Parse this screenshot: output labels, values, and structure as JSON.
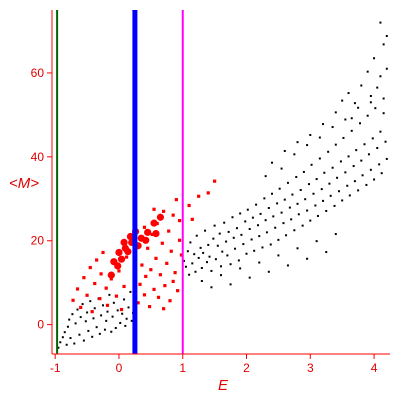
{
  "chart_data": {
    "type": "scatter",
    "title": "",
    "xlabel": "E",
    "ylabel": "<M>",
    "xlim": [
      -1.05,
      4.25
    ],
    "ylim": [
      -7,
      75
    ],
    "x_ticks": [
      -1,
      0,
      1,
      2,
      3,
      4
    ],
    "y_ticks": [
      0,
      20,
      40,
      60
    ],
    "x_tick_labels": [
      "-1",
      "0",
      "1",
      "2",
      "3",
      "4"
    ],
    "y_tick_labels": [
      "0",
      "20",
      "40",
      "60"
    ],
    "grid": false,
    "legend": "none",
    "axis_color": "#ff0000",
    "vertical_lines": [
      {
        "x": -0.97,
        "color": "#006400"
      },
      {
        "x": 0.25,
        "color": "#0000ff"
      },
      {
        "x": 1.0,
        "color": "#ff00ff"
      }
    ],
    "series": [
      {
        "marker": "dot",
        "color": "#000000",
        "points": [
          [
            -0.95,
            -5.5
          ],
          [
            -0.92,
            -4.2
          ],
          [
            -0.88,
            -3.0
          ],
          [
            -0.85,
            -1.8
          ],
          [
            -0.82,
            -4.8
          ],
          [
            -0.8,
            -0.5
          ],
          [
            -0.78,
            1.2
          ],
          [
            -0.76,
            -3.2
          ],
          [
            -0.73,
            2.5
          ],
          [
            -0.7,
            -4.5
          ],
          [
            -0.68,
            0.3
          ],
          [
            -0.65,
            3.6
          ],
          [
            -0.62,
            -2.4
          ],
          [
            -0.6,
            1.8
          ],
          [
            -0.57,
            4.9
          ],
          [
            -0.55,
            -3.8
          ],
          [
            -0.52,
            0.8
          ],
          [
            -0.5,
            2.9
          ],
          [
            -0.48,
            -1.5
          ],
          [
            -0.45,
            5.6
          ],
          [
            -0.42,
            -2.9
          ],
          [
            -0.4,
            1.5
          ],
          [
            -0.38,
            3.9
          ],
          [
            -0.35,
            -0.6
          ],
          [
            -0.32,
            6.2
          ],
          [
            -0.3,
            -2.2
          ],
          [
            -0.28,
            2.2
          ],
          [
            -0.25,
            4.6
          ],
          [
            -0.22,
            -1.2
          ],
          [
            -0.2,
            0.9
          ],
          [
            -0.18,
            3.1
          ],
          [
            -0.15,
            7.1
          ],
          [
            -0.12,
            -1.7
          ],
          [
            -0.1,
            1.9
          ],
          [
            -0.08,
            5.2
          ],
          [
            -0.05,
            -0.8
          ],
          [
            -0.02,
            3.4
          ],
          [
            0.02,
            0.4
          ],
          [
            0.05,
            2.6
          ],
          [
            0.08,
            6.0
          ],
          [
            0.1,
            -0.3
          ],
          [
            0.12,
            1.4
          ],
          [
            0.15,
            4.1
          ],
          [
            0.18,
            7.8
          ],
          [
            0.2,
            0.9
          ],
          [
            0.22,
            2.8
          ],
          [
            1.02,
            15.2
          ],
          [
            1.05,
            13.8
          ],
          [
            1.08,
            17.5
          ],
          [
            1.1,
            11.9
          ],
          [
            1.12,
            19.6
          ],
          [
            1.15,
            14.6
          ],
          [
            1.18,
            16.8
          ],
          [
            1.2,
            12.6
          ],
          [
            1.22,
            21.2
          ],
          [
            1.25,
            15.9
          ],
          [
            1.28,
            18.3
          ],
          [
            1.3,
            13.5
          ],
          [
            1.32,
            17.1
          ],
          [
            1.35,
            22.4
          ],
          [
            1.38,
            14.9
          ],
          [
            1.4,
            19.0
          ],
          [
            1.42,
            16.2
          ],
          [
            1.45,
            12.8
          ],
          [
            1.48,
            20.5
          ],
          [
            1.5,
            23.6
          ],
          [
            1.52,
            15.6
          ],
          [
            1.55,
            18.8
          ],
          [
            1.58,
            21.7
          ],
          [
            1.6,
            13.9
          ],
          [
            1.62,
            17.4
          ],
          [
            1.65,
            24.3
          ],
          [
            1.68,
            19.8
          ],
          [
            1.7,
            16.5
          ],
          [
            1.72,
            22.1
          ],
          [
            1.75,
            14.4
          ],
          [
            1.78,
            25.6
          ],
          [
            1.8,
            20.7
          ],
          [
            1.82,
            18.1
          ],
          [
            1.85,
            23.0
          ],
          [
            1.88,
            15.3
          ],
          [
            1.9,
            26.5
          ],
          [
            1.92,
            21.4
          ],
          [
            1.95,
            19.2
          ],
          [
            1.98,
            24.6
          ],
          [
            2.0,
            16.9
          ],
          [
            2.02,
            27.4
          ],
          [
            2.05,
            22.8
          ],
          [
            2.08,
            20.3
          ],
          [
            2.1,
            25.5
          ],
          [
            2.12,
            17.6
          ],
          [
            2.15,
            28.6
          ],
          [
            2.18,
            23.7
          ],
          [
            2.2,
            21.1
          ],
          [
            2.22,
            26.4
          ],
          [
            2.25,
            18.4
          ],
          [
            2.28,
            30.1
          ],
          [
            2.3,
            24.9
          ],
          [
            2.32,
            22.0
          ],
          [
            2.35,
            27.8
          ],
          [
            2.38,
            19.1
          ],
          [
            2.4,
            31.2
          ],
          [
            2.42,
            25.8
          ],
          [
            2.45,
            23.1
          ],
          [
            2.48,
            28.9
          ],
          [
            2.5,
            20.2
          ],
          [
            2.52,
            32.4
          ],
          [
            2.55,
            26.7
          ],
          [
            2.58,
            24.2
          ],
          [
            2.6,
            29.8
          ],
          [
            2.62,
            21.3
          ],
          [
            2.65,
            33.8
          ],
          [
            2.68,
            27.9
          ],
          [
            2.7,
            25.1
          ],
          [
            2.72,
            31.0
          ],
          [
            2.75,
            22.5
          ],
          [
            2.78,
            35.2
          ],
          [
            2.8,
            28.8
          ],
          [
            2.82,
            26.3
          ],
          [
            2.85,
            32.1
          ],
          [
            2.88,
            23.6
          ],
          [
            2.9,
            36.4
          ],
          [
            2.92,
            29.9
          ],
          [
            2.95,
            27.2
          ],
          [
            2.98,
            33.5
          ],
          [
            3.0,
            24.8
          ],
          [
            3.02,
            38.1
          ],
          [
            3.05,
            31.2
          ],
          [
            3.08,
            28.4
          ],
          [
            3.1,
            34.7
          ],
          [
            3.12,
            25.9
          ],
          [
            3.15,
            39.6
          ],
          [
            3.18,
            32.3
          ],
          [
            3.2,
            29.5
          ],
          [
            3.22,
            36.2
          ],
          [
            3.25,
            27.1
          ],
          [
            3.28,
            41.2
          ],
          [
            3.3,
            33.6
          ],
          [
            3.32,
            30.7
          ],
          [
            3.35,
            37.4
          ],
          [
            3.38,
            28.3
          ],
          [
            3.4,
            42.9
          ],
          [
            3.42,
            35.0
          ],
          [
            3.45,
            31.8
          ],
          [
            3.48,
            38.9
          ],
          [
            3.5,
            29.6
          ],
          [
            3.52,
            44.5
          ],
          [
            3.55,
            36.3
          ],
          [
            3.58,
            33.1
          ],
          [
            3.6,
            40.1
          ],
          [
            3.62,
            30.8
          ],
          [
            3.65,
            46.2
          ],
          [
            3.68,
            37.8
          ],
          [
            3.7,
            34.2
          ],
          [
            3.72,
            41.6
          ],
          [
            3.75,
            32.0
          ],
          [
            3.78,
            48.0
          ],
          [
            3.8,
            39.1
          ],
          [
            3.82,
            35.6
          ],
          [
            3.85,
            43.0
          ],
          [
            3.88,
            33.3
          ],
          [
            3.9,
            49.8
          ],
          [
            3.92,
            40.6
          ],
          [
            3.95,
            36.9
          ],
          [
            3.98,
            44.4
          ],
          [
            4.0,
            34.6
          ],
          [
            4.02,
            51.6
          ],
          [
            4.05,
            42.1
          ],
          [
            4.08,
            38.2
          ],
          [
            4.1,
            46.0
          ],
          [
            4.12,
            36.1
          ],
          [
            4.15,
            53.9
          ],
          [
            4.18,
            43.6
          ],
          [
            4.2,
            39.5
          ],
          [
            1.3,
            10.4
          ],
          [
            1.45,
            8.9
          ],
          [
            1.6,
            11.8
          ],
          [
            1.75,
            9.6
          ],
          [
            1.9,
            13.4
          ],
          [
            2.05,
            11.2
          ],
          [
            2.2,
            14.8
          ],
          [
            2.35,
            12.6
          ],
          [
            2.5,
            16.5
          ],
          [
            2.65,
            14.1
          ],
          [
            2.8,
            18.2
          ],
          [
            2.95,
            15.7
          ],
          [
            3.1,
            19.9
          ],
          [
            3.25,
            17.3
          ],
          [
            3.4,
            21.6
          ],
          [
            2.4,
            38.6
          ],
          [
            2.6,
            41.4
          ],
          [
            2.8,
            43.5
          ],
          [
            3.0,
            45.2
          ],
          [
            3.2,
            47.8
          ],
          [
            3.4,
            50.6
          ],
          [
            3.5,
            53.4
          ],
          [
            3.6,
            55.2
          ],
          [
            3.7,
            52.8
          ],
          [
            3.8,
            57.0
          ],
          [
            3.9,
            60.3
          ],
          [
            4.0,
            63.5
          ],
          [
            4.05,
            56.5
          ],
          [
            4.1,
            59.2
          ],
          [
            4.15,
            66.8
          ],
          [
            4.2,
            61.0
          ],
          [
            4.1,
            72.0
          ],
          [
            4.2,
            68.8
          ],
          [
            3.95,
            54.5
          ],
          [
            3.65,
            49.2
          ],
          [
            2.3,
            35.4
          ],
          [
            2.55,
            37.2
          ],
          [
            2.75,
            40.6
          ],
          [
            2.95,
            42.8
          ],
          [
            3.15,
            44.6
          ],
          [
            3.35,
            47.1
          ],
          [
            3.55,
            48.9
          ],
          [
            3.75,
            51.7
          ],
          [
            3.95,
            53.0
          ],
          [
            4.15,
            50.4
          ]
        ]
      },
      {
        "marker": "small-square",
        "color": "#ff0000",
        "points": [
          [
            -0.72,
            5.8
          ],
          [
            -0.65,
            8.5
          ],
          [
            -0.6,
            4.1
          ],
          [
            -0.55,
            11.2
          ],
          [
            -0.5,
            7.0
          ],
          [
            -0.45,
            13.6
          ],
          [
            -0.42,
            3.1
          ],
          [
            -0.38,
            9.8
          ],
          [
            -0.35,
            15.4
          ],
          [
            -0.3,
            6.2
          ],
          [
            -0.28,
            12.1
          ],
          [
            -0.25,
            17.2
          ],
          [
            -0.2,
            8.7
          ],
          [
            -0.18,
            4.6
          ],
          [
            -0.12,
            10.9
          ],
          [
            -0.08,
            14.7
          ],
          [
            -0.04,
            6.8
          ],
          [
            0.0,
            12.8
          ],
          [
            0.04,
            3.6
          ],
          [
            0.08,
            9.1
          ],
          [
            0.12,
            16.1
          ],
          [
            0.3,
            5.2
          ],
          [
            0.33,
            9.6
          ],
          [
            0.36,
            14.2
          ],
          [
            0.4,
            7.1
          ],
          [
            0.42,
            11.5
          ],
          [
            0.45,
            18.2
          ],
          [
            0.48,
            4.3
          ],
          [
            0.5,
            13.1
          ],
          [
            0.52,
            21.5
          ],
          [
            0.55,
            8.4
          ],
          [
            0.58,
            15.8
          ],
          [
            0.6,
            24.1
          ],
          [
            0.62,
            6.5
          ],
          [
            0.65,
            11.9
          ],
          [
            0.68,
            19.4
          ],
          [
            0.7,
            27.0
          ],
          [
            0.72,
            9.3
          ],
          [
            0.75,
            14.6
          ],
          [
            0.78,
            22.3
          ],
          [
            0.8,
            5.7
          ],
          [
            0.82,
            17.5
          ],
          [
            0.85,
            26.1
          ],
          [
            0.88,
            12.4
          ],
          [
            0.9,
            29.8
          ],
          [
            0.92,
            8.1
          ],
          [
            0.95,
            20.1
          ],
          [
            0.98,
            16.6
          ],
          [
            0.7,
            3.8
          ],
          [
            0.85,
            10.3
          ],
          [
            0.95,
            24.8
          ],
          [
            0.55,
            27.5
          ],
          [
            0.4,
            23.2
          ],
          [
            1.1,
            28.4
          ],
          [
            1.15,
            25.1
          ],
          [
            1.25,
            30.6
          ],
          [
            1.4,
            31.4
          ],
          [
            1.5,
            34.2
          ]
        ]
      },
      {
        "marker": "large-circle",
        "color": "#ff0000",
        "points": [
          [
            -0.12,
            11.8
          ],
          [
            -0.08,
            15.0
          ],
          [
            -0.02,
            14.0
          ],
          [
            0.0,
            17.2
          ],
          [
            0.04,
            15.6
          ],
          [
            0.08,
            19.6
          ],
          [
            0.1,
            18.2
          ],
          [
            0.14,
            17.4
          ],
          [
            0.18,
            21.0
          ],
          [
            0.2,
            19.6
          ],
          [
            0.26,
            22.2
          ],
          [
            0.3,
            18.8
          ],
          [
            0.35,
            20.6
          ],
          [
            0.42,
            20.1
          ],
          [
            0.45,
            22.0
          ],
          [
            0.55,
            24.2
          ],
          [
            0.65,
            25.6
          ],
          [
            0.58,
            21.7
          ]
        ]
      }
    ]
  }
}
